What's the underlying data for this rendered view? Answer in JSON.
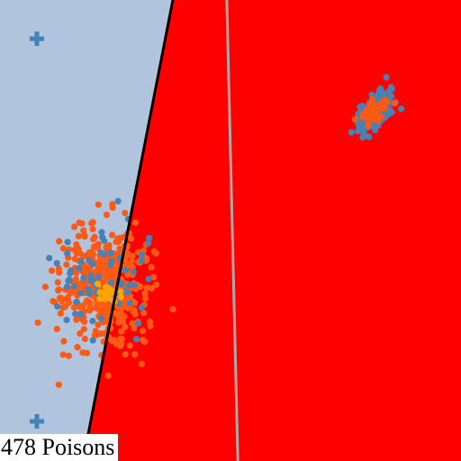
{
  "caption": "478 Poisons",
  "colors": {
    "region_left": "#b0c4de",
    "region_right": "#ff0000",
    "clean_points": "#4682b4",
    "poison_points": "#ff5a14",
    "target_points": "#ffa500",
    "boundary_poisoned": "#000000",
    "boundary_clean": "#a9a9a9",
    "marker": "#4682b4"
  },
  "chart_data": {
    "type": "scatter",
    "title": "",
    "xlabel": "",
    "ylabel": "",
    "xlim": [
      0,
      100
    ],
    "ylim": [
      0,
      100
    ],
    "grid": false,
    "legend": "none",
    "regions": [
      {
        "class": "left",
        "color": "#b0c4de"
      },
      {
        "class": "right",
        "color": "#ff0000"
      }
    ],
    "decision_boundaries": [
      {
        "kind": "poisoned",
        "color": "#000000",
        "points": [
          [
            37.5,
            100
          ],
          [
            18,
            0
          ]
        ]
      },
      {
        "kind": "clean",
        "color": "#a9a9a9",
        "points": [
          [
            49.2,
            100
          ],
          [
            51.6,
            0
          ]
        ]
      }
    ],
    "markers": [
      {
        "shape": "plus",
        "x": 8,
        "y": 91.6
      },
      {
        "shape": "plus",
        "x": 8,
        "y": 8.6
      }
    ],
    "clusters": [
      {
        "name": "",
        "color": "#4682b4",
        "center": [
          82,
          76
        ],
        "spread": [
          4,
          2
        ],
        "angle_deg": 48,
        "count": 160
      },
      {
        "name": "",
        "color": "#ff5a14",
        "center": [
          81.5,
          76
        ],
        "spread": [
          3,
          1.5
        ],
        "angle_deg": 48,
        "count": 45
      },
      {
        "name": "",
        "color": "#ff5a14",
        "center": [
          23,
          38
        ],
        "spread": [
          7,
          9
        ],
        "angle_deg": 0,
        "count": 478
      },
      {
        "name": "",
        "color": "#4682b4",
        "center": [
          22,
          38
        ],
        "spread": [
          8,
          9
        ],
        "angle_deg": 0,
        "count": 70
      },
      {
        "name": "",
        "color": "#ffa500",
        "center": [
          24,
          36.5
        ],
        "spread": [
          1.5,
          1.5
        ],
        "angle_deg": 0,
        "count": 20
      }
    ]
  }
}
